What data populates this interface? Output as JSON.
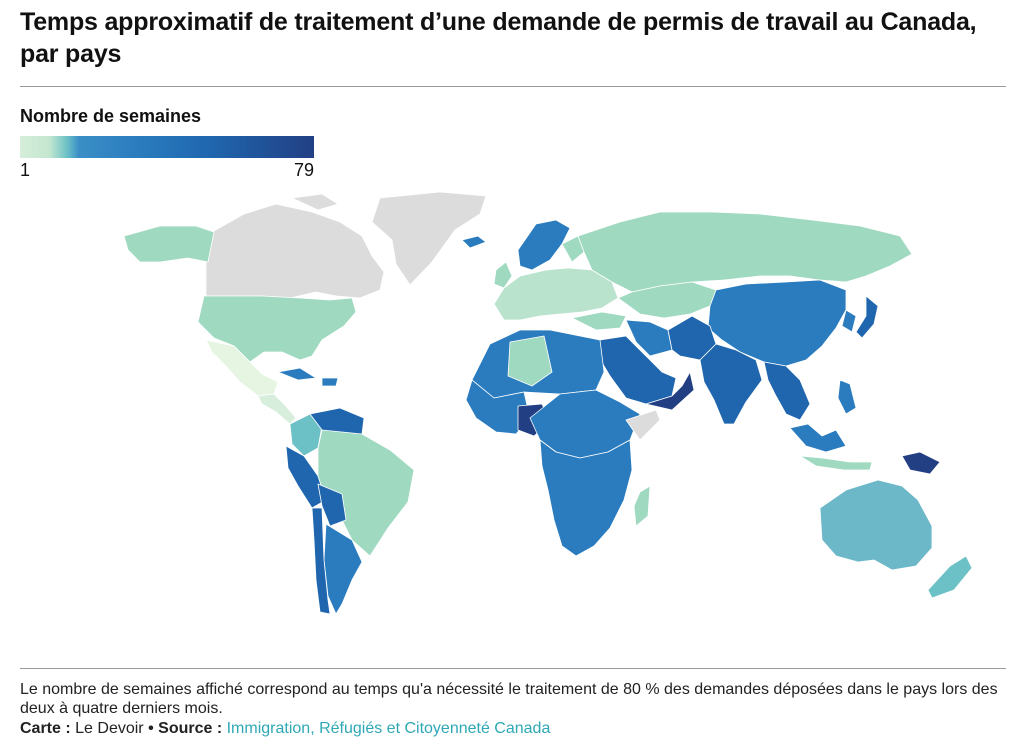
{
  "header": {
    "title": "Temps approximatif de traitement d’une demande de permis de travail au Canada, par pays"
  },
  "legend": {
    "title": "Nombre de semaines",
    "min_label": "1",
    "max_label": "79",
    "min_value": 1,
    "max_value": 79,
    "colors": [
      "#d6eedb",
      "#6cc1c6",
      "#2a7cbf",
      "#1f66ae",
      "#223f84"
    ]
  },
  "map": {
    "no_data_color": "#dcdcdc",
    "border_color": "#ffffff"
  },
  "footer": {
    "note": "Le nombre de semaines affiché correspond au temps qu'a nécessité le traitement de 80 % des demandes déposées dans le pays lors des deux à quatre derniers mois.",
    "map_label": "Carte :",
    "map_credit": "Le Devoir",
    "separator": "•",
    "source_label": "Source :",
    "source_text": "Immigration, Réfugiés et Citoyenneté Canada"
  }
}
